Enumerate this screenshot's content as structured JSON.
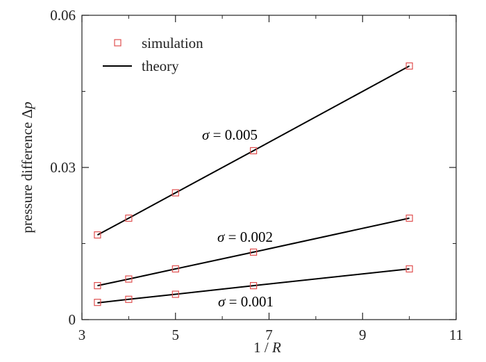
{
  "chart_data": {
    "type": "line",
    "xlabel_prefix": "1 / ",
    "xlabel_var": "R",
    "ylabel_prefix": "pressure difference Δ",
    "ylabel_var": "p",
    "xlim": [
      3,
      11
    ],
    "ylim": [
      0,
      0.06
    ],
    "x_ticks": [
      3,
      5,
      7,
      9,
      11
    ],
    "x_minor_ticks": [
      4,
      6,
      8,
      10
    ],
    "y_ticks": [
      0,
      0.03,
      0.06
    ],
    "y_tick_labels": [
      "0",
      "0.03",
      "0.06"
    ],
    "y_minor_ticks": [
      0.015,
      0.045
    ],
    "grid": false,
    "legend": {
      "placement": "top-left",
      "entries": [
        {
          "label": "simulation",
          "marker": "open-square"
        },
        {
          "label": "theory",
          "marker": "line"
        }
      ]
    },
    "x": [
      3.333,
      4,
      5,
      6.667,
      10
    ],
    "series": [
      {
        "sigma_label": "σ",
        "value_label": " = 0.005",
        "simulation": [
          0.0167,
          0.02,
          0.025,
          0.0333,
          0.05
        ],
        "theory": [
          0.0167,
          0.02,
          0.025,
          0.0333,
          0.05
        ]
      },
      {
        "sigma_label": "σ",
        "value_label": " = 0.002",
        "simulation": [
          0.0067,
          0.008,
          0.01,
          0.0133,
          0.02
        ],
        "theory": [
          0.0067,
          0.008,
          0.01,
          0.0133,
          0.02
        ]
      },
      {
        "sigma_label": "σ",
        "value_label": " = 0.001",
        "simulation": [
          0.0034,
          0.004,
          0.005,
          0.0067,
          0.01
        ],
        "theory": [
          0.0033,
          0.004,
          0.005,
          0.0067,
          0.01
        ]
      }
    ],
    "colors": {
      "simulation": "#e05050",
      "theory": "#000000",
      "axis": "#222222"
    }
  }
}
